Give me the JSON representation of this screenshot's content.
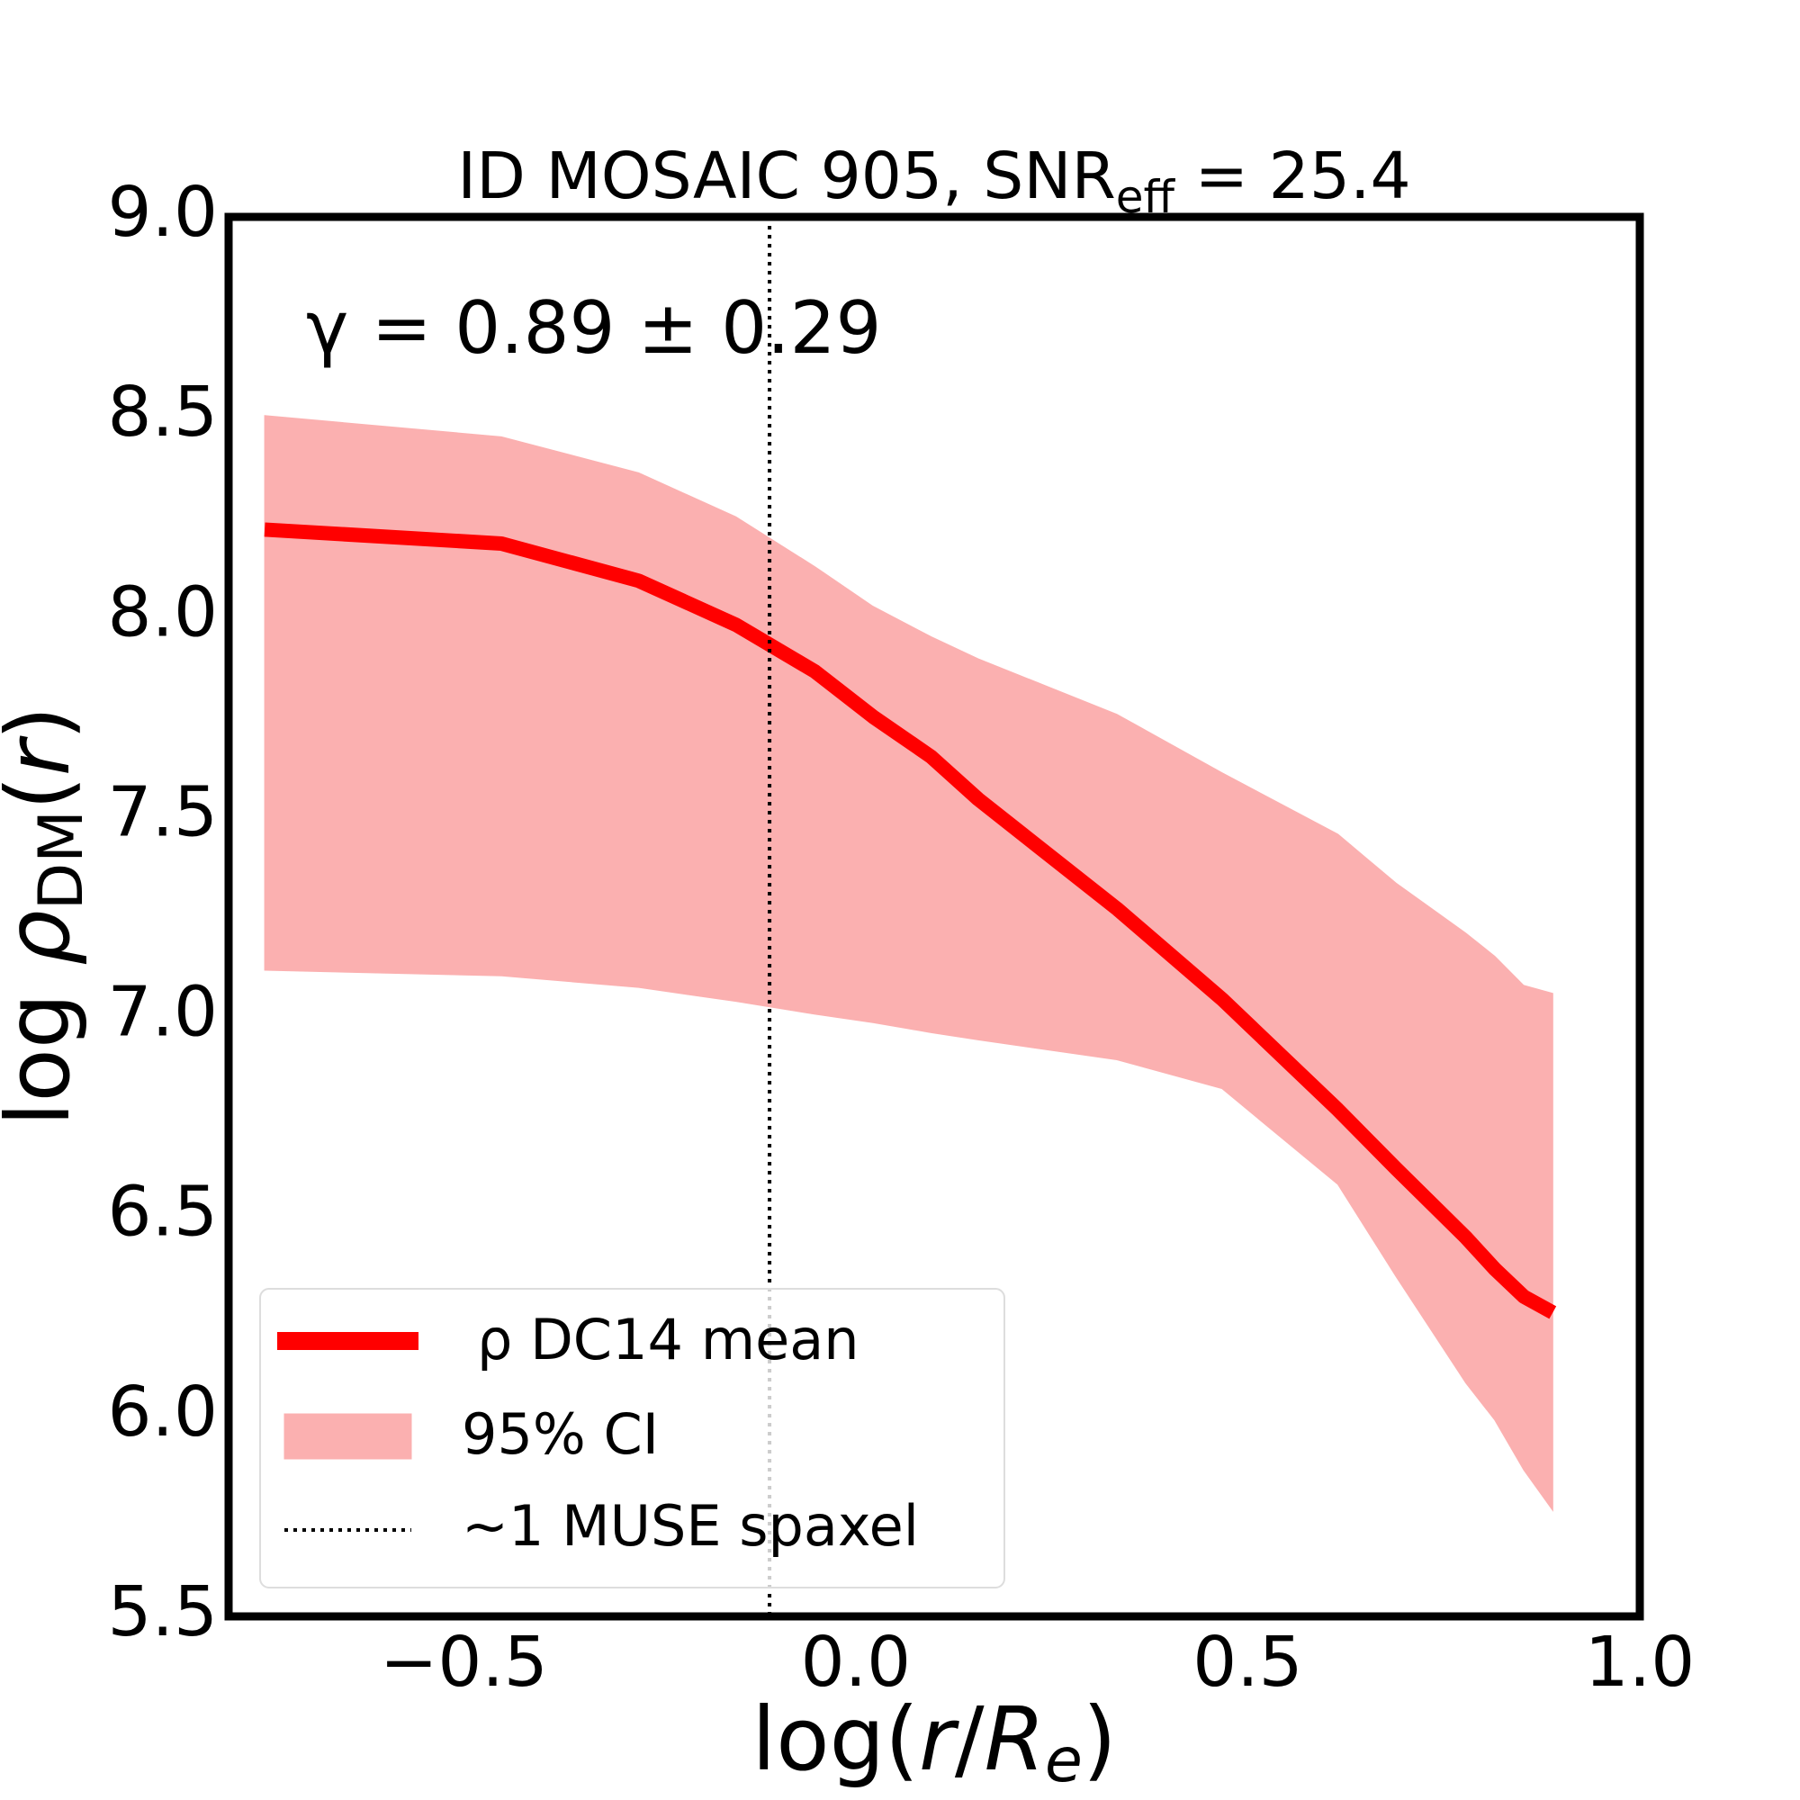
{
  "chart_data": {
    "type": "line",
    "title": [
      "ID MOSAIC 905, SNR",
      "eff",
      " = 25.4"
    ],
    "xlabel": [
      "log(",
      "r",
      "/",
      "R",
      "e",
      ")"
    ],
    "ylabel": [
      "log ",
      "ρ",
      "DM",
      "(",
      "r",
      ")"
    ],
    "annotation": "γ = 0.89 ± 0.29",
    "x": [
      -0.754,
      -0.452,
      -0.277,
      -0.153,
      -0.052,
      0.022,
      0.096,
      0.156,
      0.333,
      0.467,
      0.615,
      0.689,
      0.778,
      0.815,
      0.852,
      0.889
    ],
    "series": [
      {
        "name": "ρ DC14 mean",
        "color": "#ff0000",
        "values": [
          8.218,
          8.183,
          8.09,
          7.98,
          7.863,
          7.75,
          7.65,
          7.544,
          7.27,
          7.044,
          6.767,
          6.62,
          6.448,
          6.369,
          6.3,
          6.26
        ]
      }
    ],
    "band": {
      "name": "95% CI",
      "color": "#fbb0b0",
      "upper": [
        8.503,
        8.45,
        8.36,
        8.25,
        8.125,
        8.026,
        7.95,
        7.895,
        7.756,
        7.61,
        7.456,
        7.334,
        7.209,
        7.151,
        7.078,
        7.058
      ],
      "lower": [
        7.116,
        7.102,
        7.073,
        7.038,
        7.006,
        6.985,
        6.96,
        6.942,
        6.892,
        6.82,
        6.58,
        6.35,
        6.084,
        5.991,
        5.866,
        5.765
      ]
    },
    "vline": {
      "name": "~1 MUSE spaxel",
      "x": -0.11,
      "color": "#000000"
    },
    "xlim": [
      -0.8,
      1.0
    ],
    "ylim": [
      5.5,
      9.0
    ],
    "xticks": [
      {
        "value": -0.5,
        "label": "−0.5"
      },
      {
        "value": 0,
        "label": "0.0"
      },
      0.5,
      {
        "value": 1.0,
        "label": "1.0"
      }
    ],
    "yticks": [
      5.5,
      {
        "value": 6,
        "label": "6.0"
      },
      6.5,
      {
        "value": 7,
        "label": "7.0"
      },
      7.5,
      {
        "value": 8,
        "label": "8.0"
      },
      8.5,
      {
        "value": 9,
        "label": "9.0"
      }
    ],
    "grid": false,
    "legend": "lower left"
  }
}
